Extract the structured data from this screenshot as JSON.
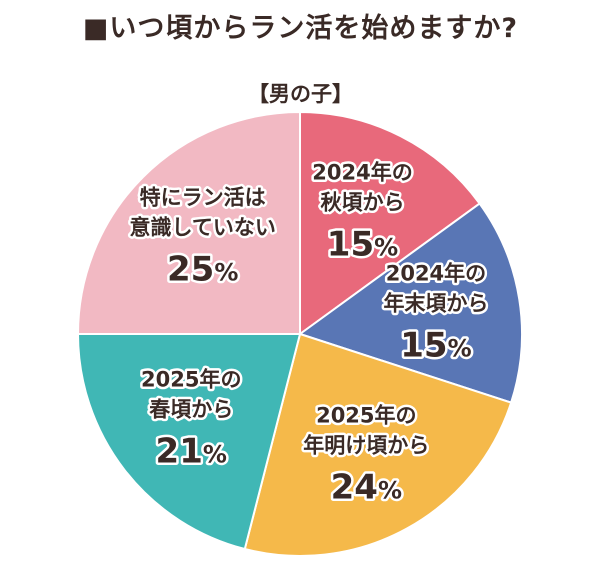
{
  "chart_data": {
    "type": "pie",
    "title": "■いつ頃からラン活を始めますか?",
    "subtitle": "【男の子】",
    "slices": [
      {
        "label": "2024年の秋頃から",
        "lines": [
          "2024年の",
          "秋頃から"
        ],
        "value": 15,
        "color": "#e8697b"
      },
      {
        "label": "2024年の年末頃から",
        "lines": [
          "2024年の",
          "年末頃から"
        ],
        "value": 15,
        "color": "#5976b5"
      },
      {
        "label": "2025年の年明け頃から",
        "lines": [
          "2025年の",
          "年明け頃から"
        ],
        "value": 24,
        "color": "#f5b94a"
      },
      {
        "label": "2025年の春頃から",
        "lines": [
          "2025年の",
          "春頃から"
        ],
        "value": 21,
        "color": "#40b7b5"
      },
      {
        "label": "特にラン活は意識していない",
        "lines": [
          "特にラン活は",
          "意識していない"
        ],
        "value": 25,
        "color": "#f2b9c3"
      }
    ],
    "unit": "%",
    "legend": "none",
    "start_angle": "12 o'clock",
    "direction": "clockwise"
  }
}
